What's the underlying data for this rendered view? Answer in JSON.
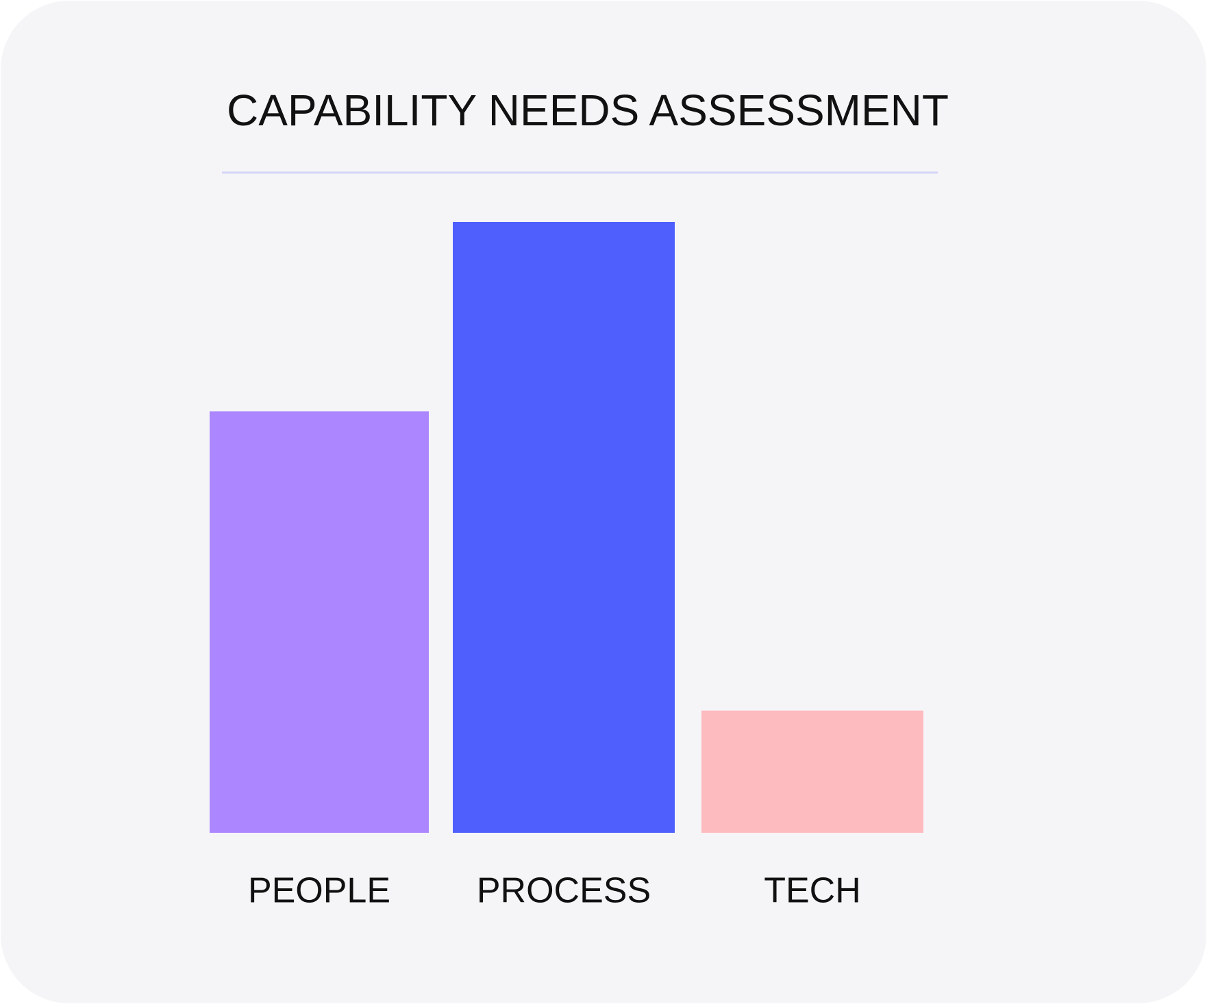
{
  "chart_data": {
    "type": "bar",
    "title": "CAPABILITY NEEDS ASSESSMENT",
    "categories": [
      "PEOPLE",
      "PROCESS",
      "TECH"
    ],
    "values": [
      69,
      100,
      20
    ],
    "colors": [
      "#ac86fe",
      "#4f5ffe",
      "#febbbf"
    ]
  }
}
